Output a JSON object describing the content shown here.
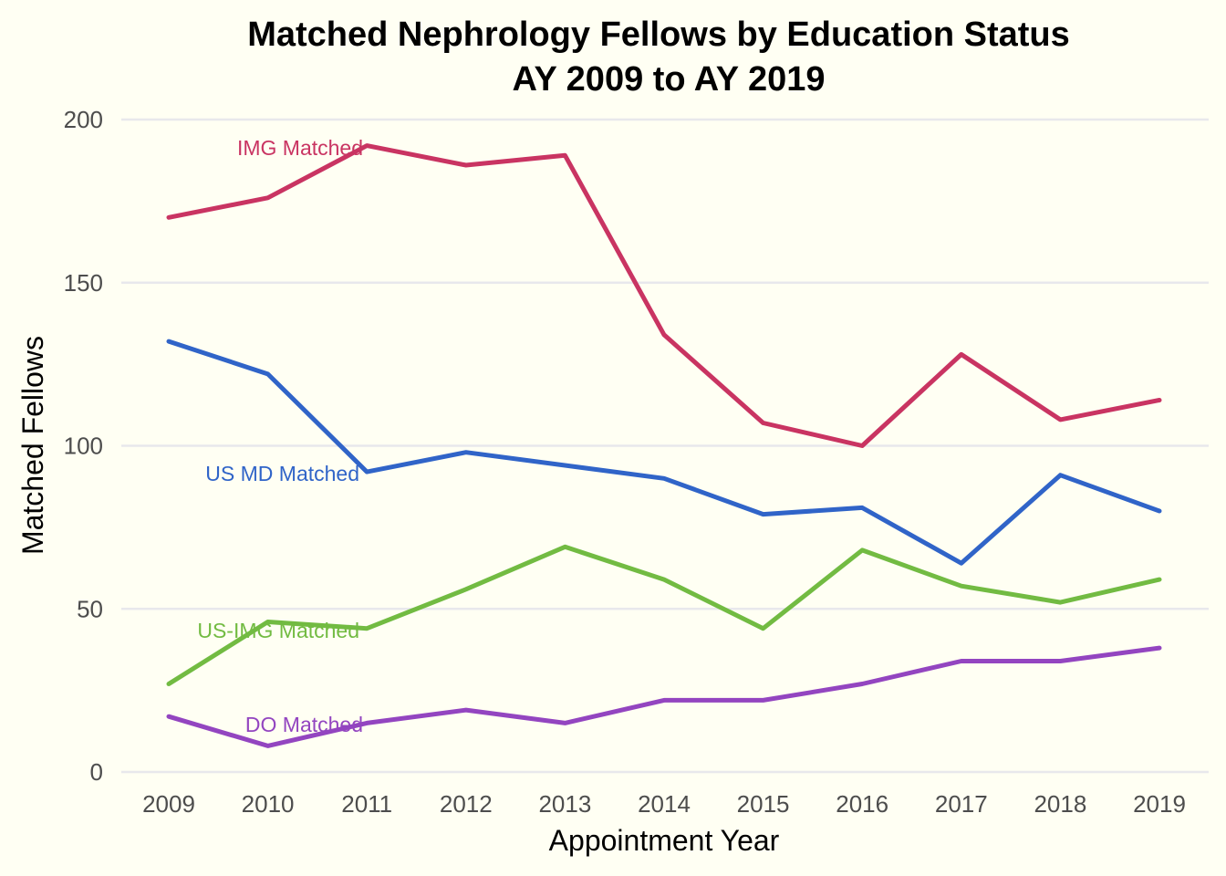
{
  "chart_data": {
    "type": "line",
    "title": "Matched Nephrology Fellows by Education Status",
    "subtitle": "AY 2009 to AY 2019",
    "xlabel": "Appointment Year",
    "ylabel": "Matched Fellows",
    "ylim": [
      0,
      200
    ],
    "yticks": [
      0,
      50,
      100,
      150,
      200
    ],
    "grid": true,
    "legend": "direct labels on lines",
    "x": [
      2009,
      2010,
      2011,
      2012,
      2013,
      2014,
      2015,
      2016,
      2017,
      2018,
      2019
    ],
    "series": [
      {
        "name": "IMG Matched",
        "color": "#c93462",
        "values": [
          170,
          176,
          192,
          186,
          189,
          134,
          107,
          100,
          128,
          108,
          114
        ]
      },
      {
        "name": "US MD Matched",
        "color": "#3064c8",
        "values": [
          132,
          122,
          92,
          98,
          94,
          90,
          79,
          81,
          64,
          91,
          80
        ]
      },
      {
        "name": "US-IMG Matched",
        "color": "#72bb42",
        "values": [
          27,
          46,
          44,
          56,
          69,
          59,
          44,
          68,
          57,
          52,
          59
        ]
      },
      {
        "name": "DO Matched",
        "color": "#9345c0",
        "values": [
          17,
          8,
          15,
          19,
          15,
          22,
          22,
          27,
          34,
          34,
          38
        ]
      }
    ]
  }
}
